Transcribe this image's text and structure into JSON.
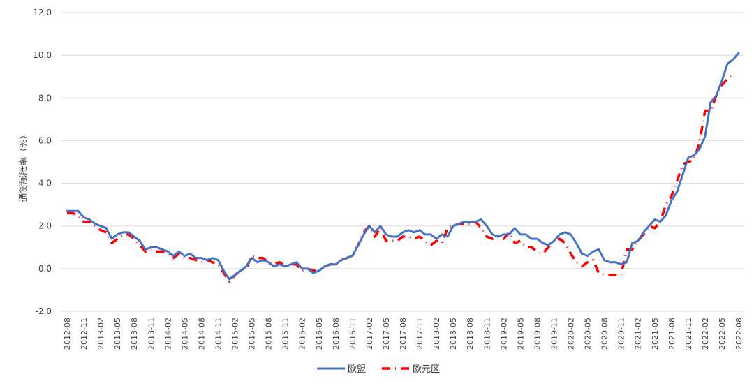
{
  "chart_data": {
    "type": "line",
    "title": "",
    "xlabel": "",
    "ylabel": "通货膨胀率（%）",
    "ylim": [
      -2.0,
      12.0
    ],
    "yticks": [
      "12.0",
      "10.0",
      "8.0",
      "6.0",
      "4.0",
      "2.0",
      "0.0",
      "-2.0"
    ],
    "ytick_values": [
      12,
      10,
      8,
      6,
      4,
      2,
      0,
      -2
    ],
    "grid": "horizontal",
    "legend_position": "bottom",
    "x_tick_labels": [
      "2012-08",
      "2012-11",
      "2013-02",
      "2013-05",
      "2013-08",
      "2013-11",
      "2014-02",
      "2014-05",
      "2014-08",
      "2014-11",
      "2015-02",
      "2015-05",
      "2015-08",
      "2015-11",
      "2016-02",
      "2016-05",
      "2016-08",
      "2016-11",
      "2017-02",
      "2017-05",
      "2017-08",
      "2017-11",
      "2018-02",
      "2018-05",
      "2018-08",
      "2018-11",
      "2019-02",
      "2019-05",
      "2019-08",
      "2019-11",
      "2020-02",
      "2020-05",
      "2020-08",
      "2020-11",
      "2021-02",
      "2021-05",
      "2021-08",
      "2021-11",
      "2022-02",
      "2022-05",
      "2022-08"
    ],
    "x_start": "2012-08",
    "series": [
      {
        "name": "欧盟",
        "color": "#4472C4",
        "style": "solid",
        "values": [
          2.7,
          2.7,
          2.7,
          2.4,
          2.3,
          2.1,
          2.0,
          1.9,
          1.4,
          1.6,
          1.7,
          1.7,
          1.5,
          1.3,
          0.9,
          1.0,
          1.0,
          0.9,
          0.8,
          0.6,
          0.8,
          0.6,
          0.7,
          0.5,
          0.5,
          0.4,
          0.5,
          0.4,
          -0.1,
          -0.5,
          -0.3,
          -0.1,
          0.1,
          0.5,
          0.3,
          0.4,
          0.3,
          0.1,
          0.2,
          0.1,
          0.2,
          0.3,
          0.0,
          0.0,
          -0.2,
          -0.1,
          0.1,
          0.2,
          0.2,
          0.4,
          0.5,
          0.6,
          1.1,
          1.6,
          2.0,
          1.7,
          2.0,
          1.6,
          1.5,
          1.5,
          1.7,
          1.8,
          1.7,
          1.8,
          1.6,
          1.6,
          1.4,
          1.6,
          1.5,
          2.0,
          2.1,
          2.2,
          2.2,
          2.2,
          2.3,
          2.0,
          1.6,
          1.5,
          1.6,
          1.6,
          1.9,
          1.6,
          1.6,
          1.4,
          1.4,
          1.2,
          1.1,
          1.3,
          1.6,
          1.7,
          1.6,
          1.2,
          0.7,
          0.6,
          0.8,
          0.9,
          0.4,
          0.3,
          0.3,
          0.2,
          0.3,
          1.2,
          1.3,
          1.7,
          2.0,
          2.3,
          2.2,
          2.5,
          3.2,
          3.6,
          4.4,
          5.2,
          5.3,
          5.6,
          6.2,
          7.8,
          8.1,
          8.8,
          9.6,
          9.8,
          10.1
        ]
      },
      {
        "name": "欧元区",
        "color": "#FF0000",
        "style": "dash-dot",
        "values": [
          2.6,
          2.6,
          2.5,
          2.2,
          2.2,
          2.0,
          1.8,
          1.7,
          1.2,
          1.4,
          1.6,
          1.6,
          1.4,
          1.1,
          0.8,
          0.9,
          0.8,
          0.8,
          0.7,
          0.5,
          0.7,
          0.5,
          0.5,
          0.4,
          0.3,
          0.4,
          0.3,
          0.2,
          -0.2,
          -0.6,
          -0.3,
          -0.1,
          0.0,
          0.6,
          0.5,
          0.5,
          0.3,
          0.2,
          0.3,
          0.1,
          0.2,
          0.2,
          -0.1,
          0.0,
          -0.1,
          -0.1,
          0.1,
          0.2,
          0.2,
          0.4,
          0.5,
          0.6,
          1.1,
          1.7,
          2.0,
          1.5,
          1.9,
          1.3,
          1.3,
          1.3,
          1.5,
          1.5,
          1.4,
          1.5,
          1.3,
          1.1,
          1.3,
          1.2,
          1.9,
          2.0,
          2.1,
          2.1,
          2.1,
          2.2,
          1.9,
          1.5,
          1.4,
          1.5,
          1.4,
          1.7,
          1.2,
          1.3,
          1.0,
          1.0,
          0.8,
          0.7,
          1.0,
          1.3,
          1.4,
          1.2,
          0.7,
          0.3,
          0.1,
          0.3,
          0.4,
          -0.2,
          -0.3,
          -0.3,
          -0.3,
          -0.3,
          0.9,
          0.9,
          1.3,
          1.6,
          2.0,
          1.9,
          2.2,
          3.0,
          3.4,
          4.1,
          4.9,
          5.0,
          5.1,
          5.9,
          7.4,
          7.4,
          8.1,
          8.6,
          8.9,
          9.1
        ]
      }
    ]
  }
}
